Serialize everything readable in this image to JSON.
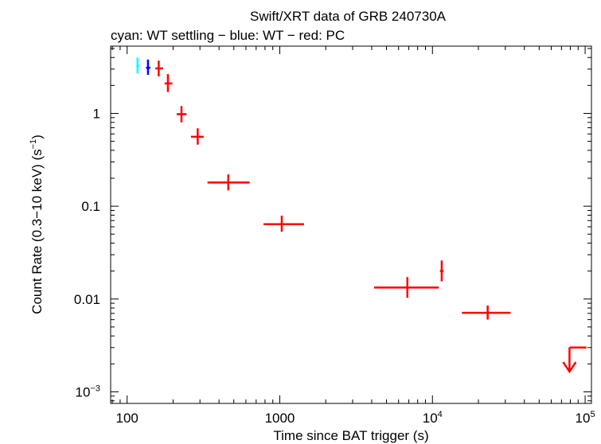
{
  "chart_data": {
    "type": "scatter",
    "title": "Swift/XRT data of GRB 240730A",
    "subtitle": "cyan: WT settling − blue: WT − red: PC",
    "xlabel": "Time since BAT trigger (s)",
    "ylabel_main": "Count Rate (0.3−10 keV) (s",
    "ylabel_sup": "−1",
    "ylabel_close": ")",
    "xscale": "log",
    "yscale": "log",
    "xlim": [
      78,
      110000
    ],
    "ylim": [
      0.00075,
      5.3
    ],
    "grid": false,
    "x_ticks": [
      {
        "value": 100,
        "label": "100",
        "sup": ""
      },
      {
        "value": 1000,
        "label": "1000",
        "sup": ""
      },
      {
        "value": 10000,
        "label": "10",
        "sup": "4"
      },
      {
        "value": 100000,
        "label": "10",
        "sup": "5"
      }
    ],
    "y_ticks": [
      {
        "value": 1,
        "label": "1",
        "sup": ""
      },
      {
        "value": 0.1,
        "label": "0.1",
        "sup": ""
      },
      {
        "value": 0.01,
        "label": "0.01",
        "sup": ""
      },
      {
        "value": 0.001,
        "label": "10",
        "sup": "−3"
      }
    ],
    "series": [
      {
        "name": "WT settling",
        "color": "#00ffff",
        "points": [
          {
            "x": 117,
            "xlo": 115,
            "xhi": 120,
            "y": 3.25,
            "ylo": 2.7,
            "yhi": 4.0
          }
        ]
      },
      {
        "name": "WT",
        "color": "#0000ff",
        "points": [
          {
            "x": 137,
            "xlo": 133,
            "xhi": 142,
            "y": 3.1,
            "ylo": 2.6,
            "yhi": 3.8
          }
        ]
      },
      {
        "name": "PC",
        "color": "#ff0000",
        "points": [
          {
            "x": 161,
            "xlo": 153,
            "xhi": 172,
            "y": 3.05,
            "ylo": 2.5,
            "yhi": 3.7
          },
          {
            "x": 185,
            "xlo": 176,
            "xhi": 198,
            "y": 2.1,
            "ylo": 1.7,
            "yhi": 2.65
          },
          {
            "x": 227,
            "xlo": 211,
            "xhi": 245,
            "y": 0.98,
            "ylo": 0.8,
            "yhi": 1.2
          },
          {
            "x": 290,
            "xlo": 262,
            "xhi": 317,
            "y": 0.56,
            "ylo": 0.46,
            "yhi": 0.69
          },
          {
            "x": 460,
            "xlo": 336,
            "xhi": 635,
            "y": 0.18,
            "ylo": 0.148,
            "yhi": 0.22
          },
          {
            "x": 1030,
            "xlo": 782,
            "xhi": 1440,
            "y": 0.064,
            "ylo": 0.053,
            "yhi": 0.079
          },
          {
            "x": 6850,
            "xlo": 4150,
            "xhi": 11000,
            "y": 0.0133,
            "ylo": 0.0103,
            "yhi": 0.0172
          },
          {
            "x": 11500,
            "xlo": 11200,
            "xhi": 11800,
            "y": 0.02,
            "ylo": 0.0155,
            "yhi": 0.026
          },
          {
            "x": 23000,
            "xlo": 15600,
            "xhi": 32500,
            "y": 0.0071,
            "ylo": 0.006,
            "yhi": 0.0085
          }
        ]
      },
      {
        "name": "PC upper limit",
        "color": "#ff0000",
        "upper_limits": [
          {
            "x": 79000,
            "xlo": 79000,
            "xhi": 102000,
            "y": 0.003,
            "arrow_to": 0.00165
          }
        ]
      }
    ]
  }
}
